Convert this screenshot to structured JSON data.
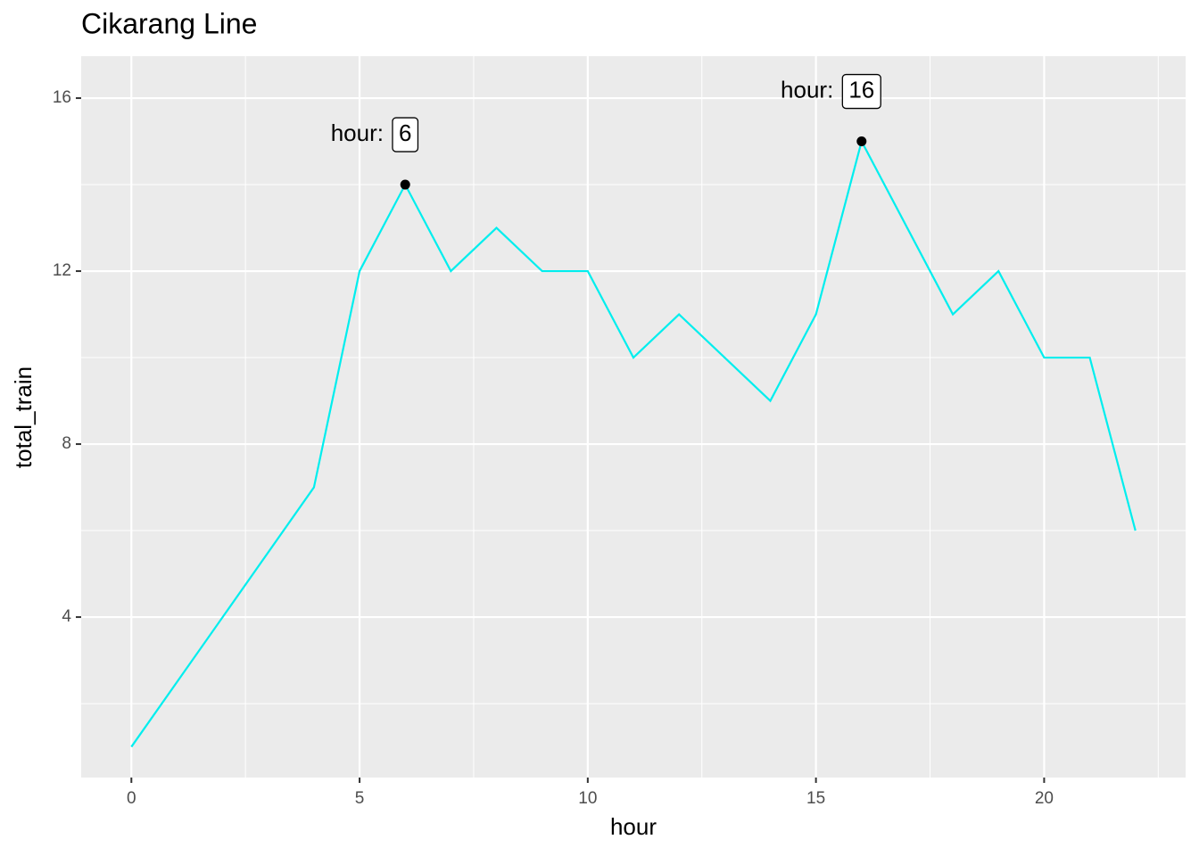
{
  "chart_data": {
    "type": "line",
    "title": "Cikarang Line",
    "x_label": "hour",
    "y_label": "total_train",
    "x": [
      0,
      4,
      5,
      6,
      7,
      8,
      9,
      10,
      11,
      12,
      13,
      14,
      15,
      16,
      17,
      18,
      19,
      20,
      21,
      22
    ],
    "values": [
      1,
      7,
      12,
      14,
      12,
      13,
      12,
      12,
      10,
      11,
      10,
      9,
      11,
      15,
      13,
      11,
      12,
      10,
      10,
      6
    ],
    "color": "#00eeee",
    "xlim": [
      -1.1,
      23.1
    ],
    "ylim": [
      0.29,
      16.97
    ],
    "xticks": [
      0,
      5,
      10,
      15,
      20
    ],
    "yticks": [
      4,
      8,
      12,
      16
    ],
    "x_minor_grid": [
      2.5,
      7.5,
      12.5,
      17.5,
      22.5
    ],
    "y_minor_grid": [
      2,
      6,
      10,
      14
    ],
    "grid": true,
    "annotations": [
      {
        "x": 6,
        "y": 14,
        "prefix": "hour:",
        "label": 6
      },
      {
        "x": 16,
        "y": 15,
        "prefix": "hour:",
        "label": 16
      }
    ]
  }
}
